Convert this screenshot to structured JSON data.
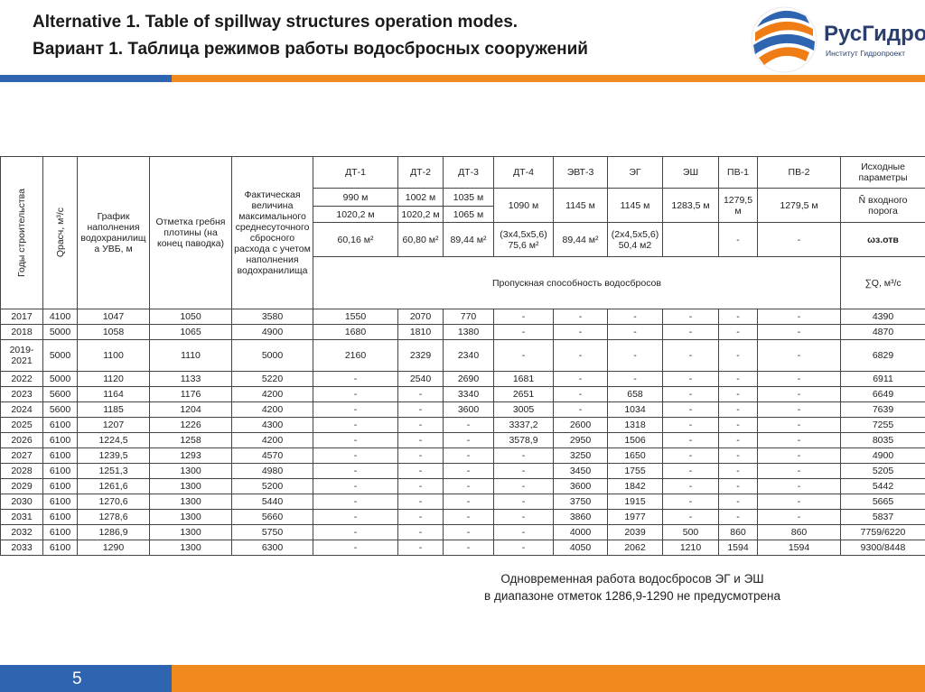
{
  "header": {
    "title_en": "Alternative 1. Table of spillway structures operation modes.",
    "title_ru": "Вариант 1. Таблица режимов работы водосбросных сооружений"
  },
  "logo": {
    "name": "РусГидро",
    "subtitle": "Институт Гидропроект"
  },
  "table": {
    "head": {
      "years": "Годы строительства",
      "q": "Qрасч, м³/с",
      "schedule": "График наполнения водохранилища УВБ, м",
      "crest": "Отметка гребня плотины (на конец паводка)",
      "actual": "Фактическая величина максимального среднесуточного сбросного расхода с учетом наполнения водохранилища",
      "outlets": [
        "ДТ-1",
        "ДТ-2",
        "ДТ-3",
        "ДТ-4",
        "ЭВТ-3",
        "ЭГ",
        "ЭШ",
        "ПВ-1",
        "ПВ-2"
      ],
      "params": "Исходные параметры",
      "sill_1": [
        "990 м",
        "1002 м",
        "1035 м",
        "1090 м",
        "1145 м",
        "1145 м",
        "1283,5 м",
        "1279,5 м",
        "1279,5 м"
      ],
      "sill_2": [
        "1020,2 м",
        "1020,2 м",
        "1065 м"
      ],
      "sill_label": "Ñ входного порога",
      "area": [
        "60,16 м²",
        "60,80 м²",
        "89,44 м²",
        "(3x4,5x5,6) 75,6 м²",
        "89,44 м²",
        "(2x4,5x5,6) 50,4 м2"
      ],
      "area_pv": [
        "-",
        "-"
      ],
      "area_label": "ωз.отв",
      "capacity": "Пропускная способность водосбросов",
      "sum": "∑Q, м³/с"
    },
    "rows": [
      [
        "2017",
        "4100",
        "1047",
        "1050",
        "3580",
        "1550",
        "2070",
        "770",
        "-",
        "-",
        "-",
        "-",
        "-",
        "-",
        "4390"
      ],
      [
        "2018",
        "5000",
        "1058",
        "1065",
        "4900",
        "1680",
        "1810",
        "1380",
        "-",
        "-",
        "-",
        "-",
        "-",
        "-",
        "4870"
      ],
      [
        "2019-2021",
        "5000",
        "1100",
        "1110",
        "5000",
        "2160",
        "2329",
        "2340",
        "-",
        "-",
        "-",
        "-",
        "-",
        "-",
        "6829"
      ],
      [
        "2022",
        "5000",
        "1120",
        "1133",
        "5220",
        "-",
        "2540",
        "2690",
        "1681",
        "-",
        "-",
        "-",
        "-",
        "-",
        "6911"
      ],
      [
        "2023",
        "5600",
        "1164",
        "1176",
        "4200",
        "-",
        "-",
        "3340",
        "2651",
        "-",
        "658",
        "-",
        "-",
        "-",
        "6649"
      ],
      [
        "2024",
        "5600",
        "1185",
        "1204",
        "4200",
        "-",
        "-",
        "3600",
        "3005",
        "-",
        "1034",
        "-",
        "-",
        "-",
        "7639"
      ],
      [
        "2025",
        "6100",
        "1207",
        "1226",
        "4300",
        "-",
        "-",
        "-",
        "3337,2",
        "2600",
        "1318",
        "-",
        "-",
        "-",
        "7255"
      ],
      [
        "2026",
        "6100",
        "1224,5",
        "1258",
        "4200",
        "-",
        "-",
        "-",
        "3578,9",
        "2950",
        "1506",
        "-",
        "-",
        "-",
        "8035"
      ],
      [
        "2027",
        "6100",
        "1239,5",
        "1293",
        "4570",
        "-",
        "-",
        "-",
        "-",
        "3250",
        "1650",
        "-",
        "-",
        "-",
        "4900"
      ],
      [
        "2028",
        "6100",
        "1251,3",
        "1300",
        "4980",
        "-",
        "-",
        "-",
        "-",
        "3450",
        "1755",
        "-",
        "-",
        "-",
        "5205"
      ],
      [
        "2029",
        "6100",
        "1261,6",
        "1300",
        "5200",
        "-",
        "-",
        "-",
        "-",
        "3600",
        "1842",
        "-",
        "-",
        "-",
        "5442"
      ],
      [
        "2030",
        "6100",
        "1270,6",
        "1300",
        "5440",
        "-",
        "-",
        "-",
        "-",
        "3750",
        "1915",
        "-",
        "-",
        "-",
        "5665"
      ],
      [
        "2031",
        "6100",
        "1278,6",
        "1300",
        "5660",
        "-",
        "-",
        "-",
        "-",
        "3860",
        "1977",
        "-",
        "-",
        "-",
        "5837"
      ],
      [
        "2032",
        "6100",
        "1286,9",
        "1300",
        "5750",
        "-",
        "-",
        "-",
        "-",
        "4000",
        "2039",
        "500",
        "860",
        "860",
        "7759/6220"
      ],
      [
        "2033",
        "6100",
        "1290",
        "1300",
        "6300",
        "-",
        "-",
        "-",
        "-",
        "4050",
        "2062",
        "1210",
        "1594",
        "1594",
        "9300/8448"
      ]
    ]
  },
  "note": [
    "Одновременная работа водосбросов ЭГ и ЭШ",
    "в диапазоне отметок 1286,9-1290 не предусмотрена"
  ],
  "page_number": "5"
}
